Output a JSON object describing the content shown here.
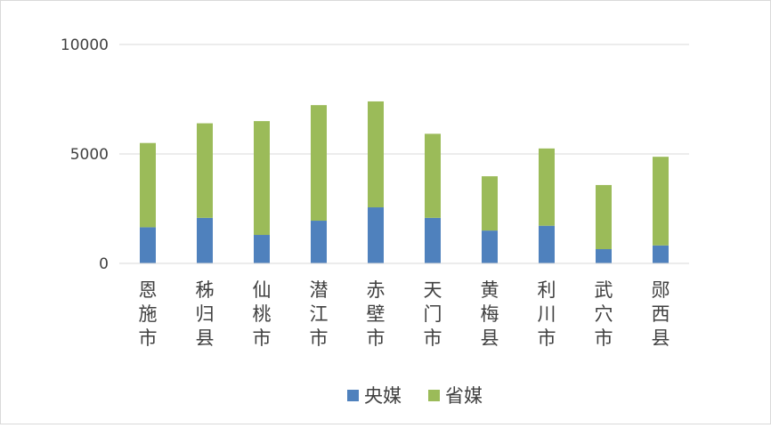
{
  "chart_data": {
    "type": "bar",
    "stacked": true,
    "title": "",
    "xlabel": "",
    "ylabel": "",
    "categories": [
      "恩施市",
      "秭归县",
      "仙桃市",
      "潜江市",
      "赤壁市",
      "天门市",
      "黄梅县",
      "利川市",
      "武穴市",
      "郧西县"
    ],
    "series": [
      {
        "name": "央媒",
        "color": "#4f81bd",
        "values": [
          1650,
          2080,
          1300,
          1950,
          2560,
          2080,
          1500,
          1720,
          650,
          820
        ]
      },
      {
        "name": "省媒",
        "color": "#9bbb59",
        "values": [
          3850,
          4320,
          5200,
          5280,
          4840,
          3840,
          2480,
          3530,
          2930,
          4050
        ]
      }
    ],
    "ylim": [
      0,
      10000
    ],
    "yticks": [
      "0",
      "5000",
      "10000"
    ],
    "grid": true,
    "legend_position": "bottom"
  }
}
